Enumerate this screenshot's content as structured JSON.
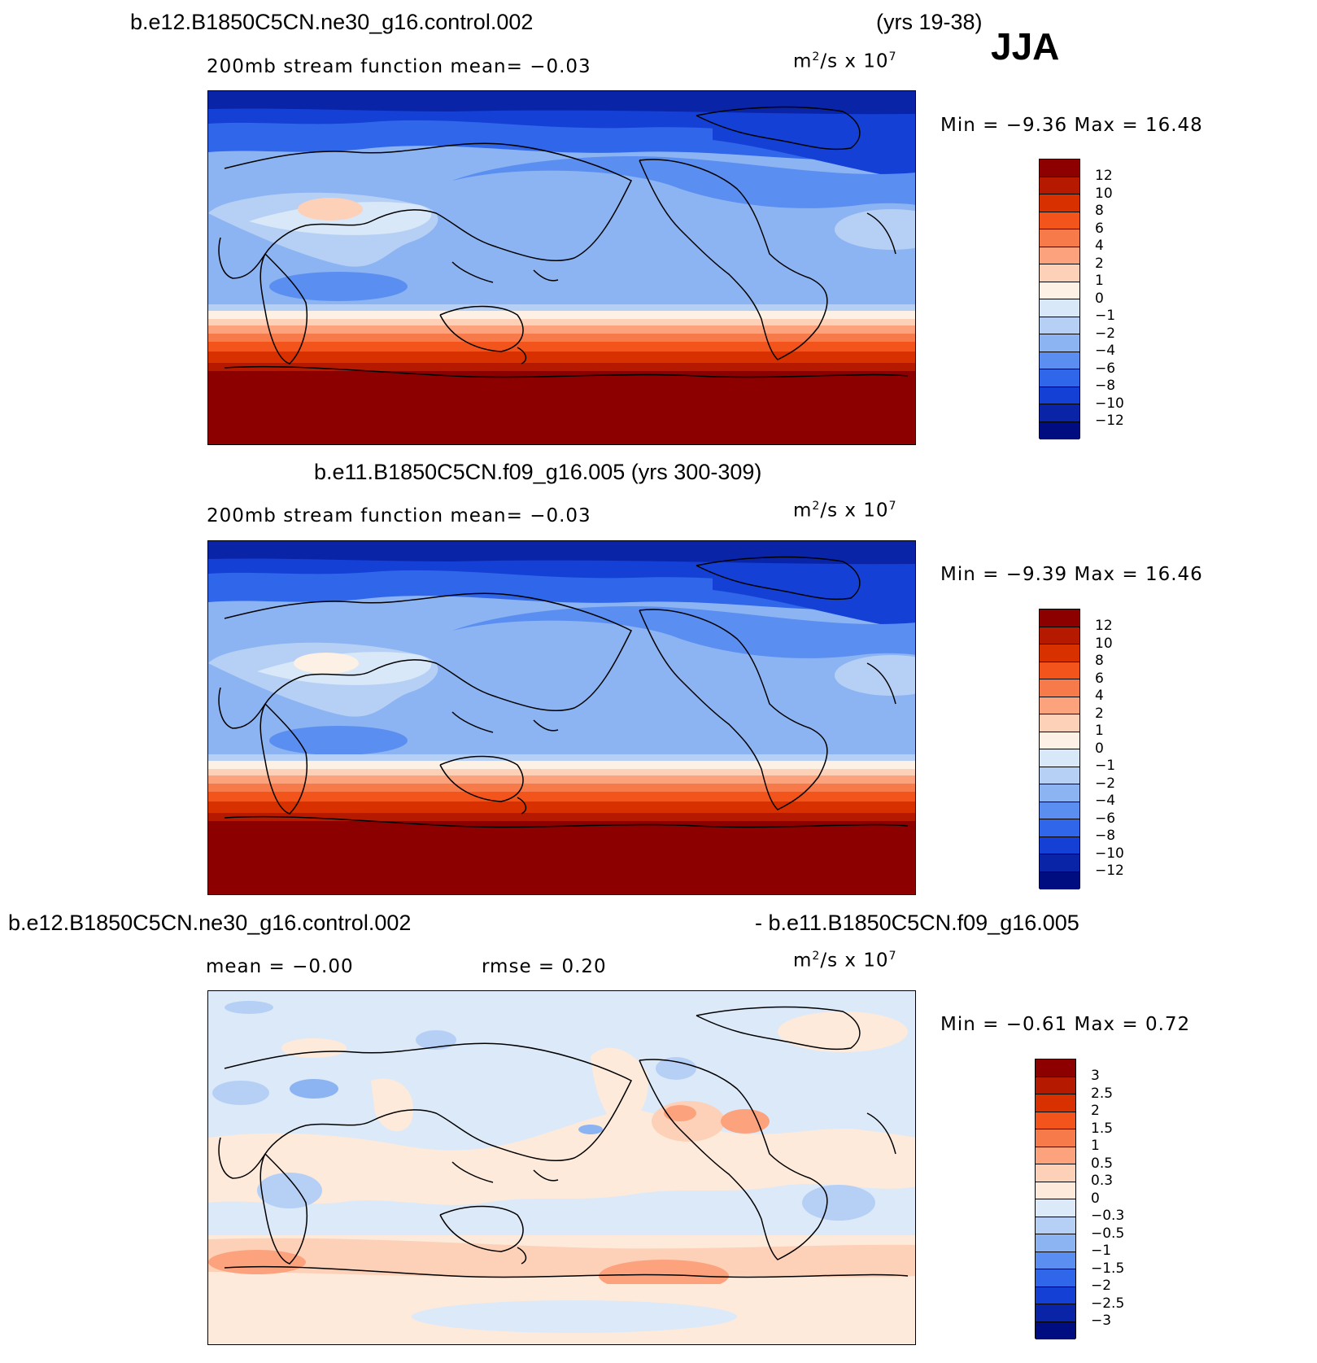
{
  "season": "JJA",
  "panels": [
    {
      "title_left": "b.e12.B1850C5CN.ne30_g16.control.002",
      "title_right": "(yrs 19-38)",
      "stat_left": "200mb stream function   mean=   −0.03",
      "stat_mid": "",
      "units_base": "m",
      "units_exp": "2",
      "units_mid": "/s x 10",
      "units_pow": "7",
      "minmax": "Min =   −9.36  Max =   16.48",
      "legend_labels": [
        "12",
        "10",
        "8",
        "6",
        "4",
        "2",
        "1",
        "0",
        "−1",
        "−2",
        "−4",
        "−6",
        "−8",
        "−10",
        "−12"
      ],
      "legend_colors": [
        "#8c0000",
        "#b51a00",
        "#d93000",
        "#f2541c",
        "#f77a4a",
        "#fca27d",
        "#fdd0b8",
        "#fdf0e4",
        "#d8e8f8",
        "#b6d0f5",
        "#8cb3f2",
        "#5a8ef0",
        "#2f66ea",
        "#1440d6",
        "#0a24a8",
        "#000d80"
      ]
    },
    {
      "title_left": "b.e11.B1850C5CN.f09_g16.005 (yrs 300-309)",
      "title_right": "",
      "stat_left": "200mb stream function   mean=   −0.03",
      "stat_mid": "",
      "units_base": "m",
      "units_exp": "2",
      "units_mid": "/s x 10",
      "units_pow": "7",
      "minmax": "Min =   −9.39  Max =   16.46",
      "legend_labels": [
        "12",
        "10",
        "8",
        "6",
        "4",
        "2",
        "1",
        "0",
        "−1",
        "−2",
        "−4",
        "−6",
        "−8",
        "−10",
        "−12"
      ],
      "legend_colors": [
        "#8c0000",
        "#b51a00",
        "#d93000",
        "#f2541c",
        "#f77a4a",
        "#fca27d",
        "#fdd0b8",
        "#fdf0e4",
        "#d8e8f8",
        "#b6d0f5",
        "#8cb3f2",
        "#5a8ef0",
        "#2f66ea",
        "#1440d6",
        "#0a24a8",
        "#000d80"
      ]
    },
    {
      "title_left": "b.e12.B1850C5CN.ne30_g16.control.002",
      "title_right": "- b.e11.B1850C5CN.f09_g16.005",
      "stat_left": "mean =   −0.00",
      "stat_mid": "rmse =    0.20",
      "units_base": "m",
      "units_exp": "2",
      "units_mid": "/s x 10",
      "units_pow": "7",
      "minmax": "Min =   −0.61  Max =    0.72",
      "legend_labels": [
        "3",
        "2.5",
        "2",
        "1.5",
        "1",
        "0.5",
        "0.3",
        "0",
        "−0.3",
        "−0.5",
        "−1",
        "−1.5",
        "−2",
        "−2.5",
        "−3"
      ],
      "legend_colors": [
        "#8c0000",
        "#b51a00",
        "#d93000",
        "#f2541c",
        "#f77a4a",
        "#fca27d",
        "#fdd0b8",
        "#fdeadb",
        "#dbe9f9",
        "#b6d0f5",
        "#8cb3f2",
        "#5a8ef0",
        "#2f66ea",
        "#1440d6",
        "#0a24a8",
        "#000d80"
      ]
    }
  ]
}
